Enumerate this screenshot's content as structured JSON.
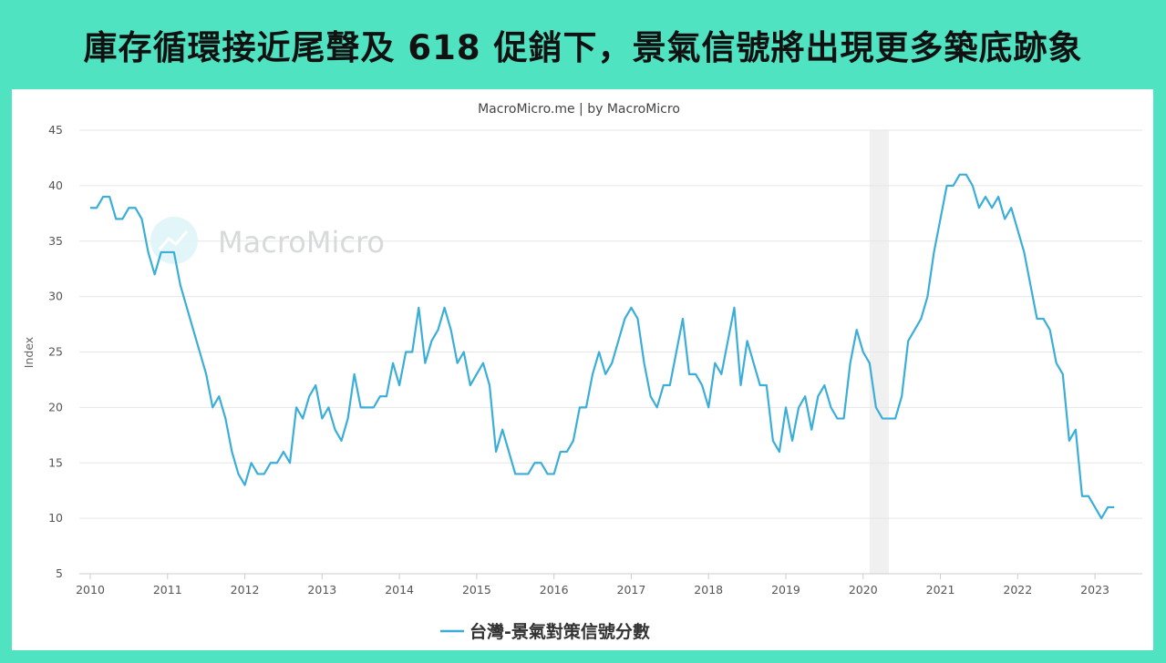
{
  "headline": "庫存循環接近尾聲及 618 促銷下，景氣信號將出現更多築底跡象",
  "source_label": "MacroMicro.me | by MacroMicro",
  "watermark": "MacroMicro",
  "colors": {
    "background": "#4fe3c1",
    "line": "#3aaed8",
    "shade": "#f0f0f0",
    "grid": "#e6e6e6"
  },
  "chart_data": {
    "type": "line",
    "title": "",
    "xlabel": "",
    "ylabel": "Index",
    "ylim": [
      5,
      45
    ],
    "yticks": [
      5,
      10,
      15,
      20,
      25,
      30,
      35,
      40,
      45
    ],
    "xlim": [
      2010.0,
      2023.4
    ],
    "xticks": [
      "2010",
      "2011",
      "2012",
      "2013",
      "2014",
      "2015",
      "2016",
      "2017",
      "2018",
      "2019",
      "2020",
      "2021",
      "2022",
      "2023"
    ],
    "grid": "horizontal",
    "legend": "bottom-center",
    "shaded_ranges": [
      {
        "from": "2020-02",
        "to": "2020-04"
      }
    ],
    "series": [
      {
        "name": "台灣-景氣對策信號分數",
        "start": "2010-01",
        "frequency": "monthly",
        "values": [
          38,
          38,
          39,
          39,
          37,
          37,
          38,
          38,
          37,
          34,
          32,
          34,
          34,
          34,
          31,
          29,
          27,
          25,
          23,
          20,
          21,
          19,
          16,
          14,
          13,
          15,
          14,
          14,
          15,
          15,
          16,
          15,
          20,
          19,
          21,
          22,
          19,
          20,
          18,
          17,
          19,
          23,
          20,
          20,
          20,
          21,
          21,
          24,
          22,
          25,
          25,
          29,
          24,
          26,
          27,
          29,
          27,
          24,
          25,
          22,
          23,
          24,
          22,
          16,
          18,
          16,
          14,
          14,
          14,
          15,
          15,
          14,
          14,
          16,
          16,
          17,
          20,
          20,
          23,
          25,
          23,
          24,
          26,
          28,
          29,
          28,
          24,
          21,
          20,
          22,
          22,
          25,
          28,
          23,
          23,
          22,
          20,
          24,
          23,
          26,
          29,
          22,
          26,
          24,
          22,
          22,
          17,
          16,
          20,
          17,
          20,
          21,
          18,
          21,
          22,
          20,
          19,
          19,
          24,
          27,
          25,
          24,
          20,
          19,
          19,
          19,
          21,
          26,
          27,
          28,
          30,
          34,
          37,
          40,
          40,
          41,
          41,
          40,
          38,
          39,
          38,
          39,
          37,
          38,
          36,
          34,
          31,
          28,
          28,
          27,
          24,
          23,
          17,
          18,
          12,
          12,
          11,
          10,
          11,
          11
        ]
      }
    ]
  }
}
